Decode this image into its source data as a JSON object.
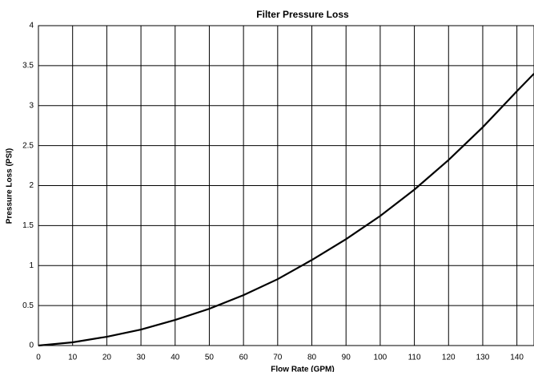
{
  "chart_data": {
    "type": "line",
    "title": "Filter Pressure Loss",
    "x_label": "Flow Rate (GPM)",
    "y_label": "Pressure Loss (PSI)",
    "x": [
      0,
      10,
      20,
      30,
      40,
      50,
      60,
      70,
      80,
      90,
      100,
      110,
      120,
      130,
      140,
      145
    ],
    "series": [
      {
        "name": "Pressure Loss",
        "color": "#000000",
        "values": [
          0,
          0.04,
          0.11,
          0.2,
          0.32,
          0.46,
          0.63,
          0.83,
          1.07,
          1.33,
          1.62,
          1.95,
          2.32,
          2.73,
          3.18,
          3.4
        ]
      }
    ],
    "xlim": [
      0,
      145
    ],
    "xticks": [
      0,
      10,
      20,
      30,
      40,
      50,
      60,
      70,
      80,
      90,
      100,
      110,
      120,
      130,
      140
    ],
    "ylim": [
      0,
      4
    ],
    "yticks": [
      0,
      0.5,
      1,
      1.5,
      2,
      2.5,
      3,
      3.5,
      4
    ],
    "grid": true
  }
}
